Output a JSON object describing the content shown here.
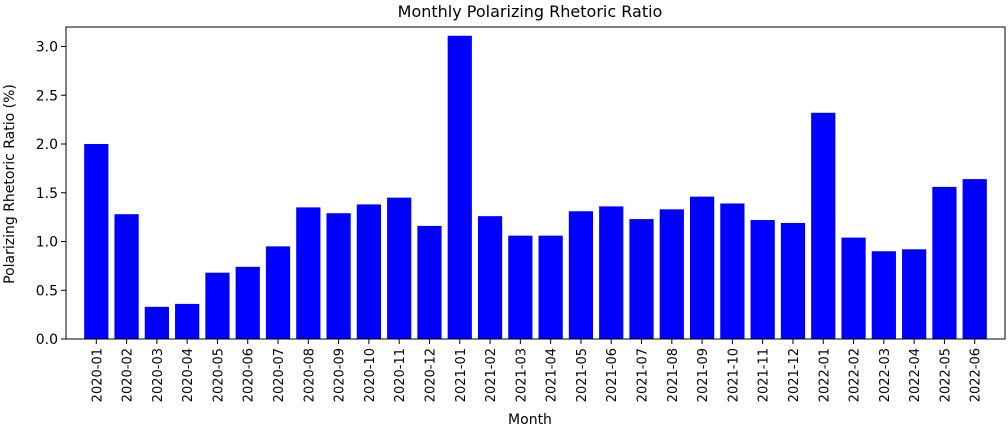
{
  "chart_data": {
    "type": "bar",
    "title": "Monthly Polarizing Rhetoric Ratio",
    "xlabel": "Month",
    "ylabel": "Polarizing Rhetoric Ratio (%)",
    "ylim": [
      0,
      3.2
    ],
    "yticks": [
      "0.0",
      "0.5",
      "1.0",
      "1.5",
      "2.0",
      "2.5",
      "3.0"
    ],
    "grid": false,
    "bar_color": "#0000ff",
    "categories": [
      "2020-01",
      "2020-02",
      "2020-03",
      "2020-04",
      "2020-05",
      "2020-06",
      "2020-07",
      "2020-08",
      "2020-09",
      "2020-10",
      "2020-11",
      "2020-12",
      "2021-01",
      "2021-02",
      "2021-03",
      "2021-04",
      "2021-05",
      "2021-06",
      "2021-07",
      "2021-08",
      "2021-09",
      "2021-10",
      "2021-11",
      "2021-12",
      "2022-01",
      "2022-02",
      "2022-03",
      "2022-04",
      "2022-05",
      "2022-06"
    ],
    "values": [
      2.0,
      1.28,
      0.33,
      0.36,
      0.68,
      0.74,
      0.95,
      1.35,
      1.29,
      1.38,
      1.45,
      1.16,
      3.11,
      1.26,
      1.06,
      1.06,
      1.31,
      1.36,
      1.23,
      1.33,
      1.46,
      1.39,
      1.22,
      1.19,
      2.32,
      1.04,
      0.9,
      0.92,
      1.56,
      1.64
    ]
  }
}
